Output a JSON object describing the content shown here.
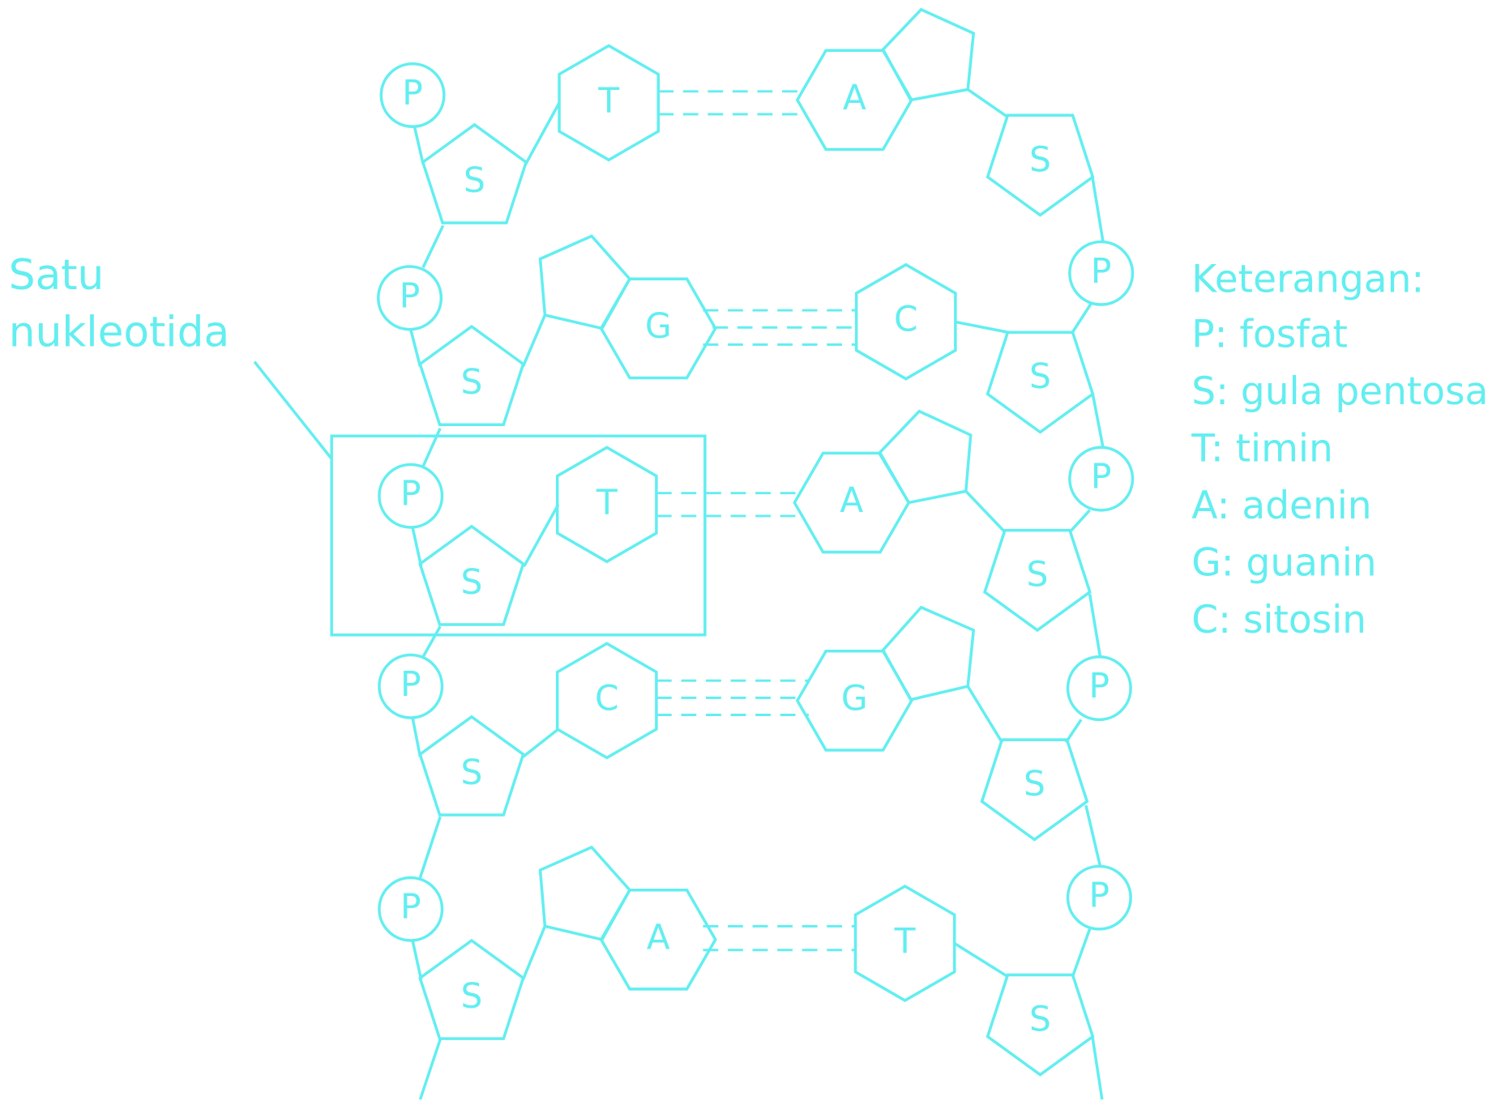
{
  "callout": {
    "lines": [
      "Satu",
      "nukleotida"
    ]
  },
  "legend": {
    "title": "Keterangan:",
    "items": [
      "P: fosfat",
      "S: gula pentosa",
      "T: timin",
      "A: adenin",
      "G: guanin",
      "C: sitosin"
    ]
  },
  "rows": [
    {
      "left_phosphate": "P",
      "left_sugar": "S",
      "left_base": "T",
      "right_base": "A",
      "right_sugar": "S",
      "right_phosphate": "P"
    },
    {
      "left_phosphate": "P",
      "left_sugar": "S",
      "left_base": "G",
      "right_base": "C",
      "right_sugar": "S",
      "right_phosphate": "P"
    },
    {
      "left_phosphate": "P",
      "left_sugar": "S",
      "left_base": "T",
      "right_base": "A",
      "right_sugar": "S",
      "right_phosphate": "P"
    },
    {
      "left_phosphate": "P",
      "left_sugar": "S",
      "left_base": "C",
      "right_base": "G",
      "right_sugar": "S",
      "right_phosphate": "P"
    },
    {
      "left_phosphate": "P",
      "left_sugar": "S",
      "left_base": "A",
      "right_base": "T",
      "right_sugar": "S"
    }
  ]
}
